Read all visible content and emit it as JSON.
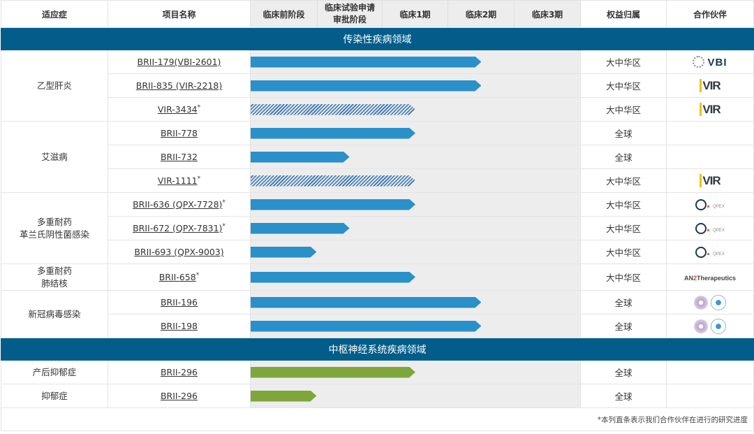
{
  "headers": {
    "indication": "适应症",
    "project": "项目名称",
    "phases": [
      "临床前阶段",
      "临床试验申请\n审批阶段",
      "临床1期",
      "临床2期",
      "临床3期"
    ],
    "rights": "权益归属",
    "partner": "合作伙伴"
  },
  "colors": {
    "band": "#025d8a",
    "own_bar": "#2a90c9",
    "cns_bar": "#7fa63a",
    "partner_bar": "hatched"
  },
  "sections": [
    {
      "title": "传染性疾病领域",
      "groups": [
        {
          "indication": "乙型肝炎",
          "rows": [
            {
              "name": "BRII-179(VBI-2601)",
              "asterisk": "",
              "progress_phases": 3.5,
              "style": "blue",
              "rights": "大中华区",
              "partner": "VBI"
            },
            {
              "name": "BRII-835 (VIR-2218)",
              "asterisk": "",
              "progress_phases": 3.5,
              "style": "blue",
              "rights": "大中华区",
              "partner": "VIR"
            },
            {
              "name": "VIR-3434",
              "asterisk": "*",
              "progress_phases": 2.5,
              "style": "hatch",
              "rights": "大中华区",
              "partner": "VIR"
            }
          ]
        },
        {
          "indication": "艾滋病",
          "rows": [
            {
              "name": "BRII-778",
              "asterisk": "",
              "progress_phases": 2.5,
              "style": "blue",
              "rights": "全球",
              "partner": ""
            },
            {
              "name": "BRII-732",
              "asterisk": "",
              "progress_phases": 1.5,
              "style": "blue",
              "rights": "全球",
              "partner": ""
            },
            {
              "name": "VIR-1111",
              "asterisk": "*",
              "progress_phases": 2.5,
              "style": "hatch",
              "rights": "大中华区",
              "partner": "VIR"
            }
          ]
        },
        {
          "indication": "多重耐药\n革兰氏阴性菌感染",
          "rows": [
            {
              "name": "BRII-636 (QPX-7728)",
              "asterisk": "*",
              "progress_phases": 2.5,
              "style": "blue",
              "rights": "大中华区",
              "partner": "QPEX"
            },
            {
              "name": "BRII-672 (QPX-7831)",
              "asterisk": "*",
              "progress_phases": 1.5,
              "style": "blue",
              "rights": "大中华区",
              "partner": "QPEX"
            },
            {
              "name": "BRII-693 (QPX-9003)",
              "asterisk": "",
              "progress_phases": 1.0,
              "style": "blue",
              "rights": "大中华区",
              "partner": "QPEX"
            }
          ]
        },
        {
          "indication": "多重耐药\n肺结核",
          "tall": true,
          "rows": [
            {
              "name": "BRII-658",
              "asterisk": "*",
              "progress_phases": 2.5,
              "style": "blue",
              "rights": "大中华区",
              "partner": "AN2Therapeutics"
            }
          ]
        },
        {
          "indication": "新冠病毒感染",
          "rows": [
            {
              "name": "BRII-196",
              "asterisk": "",
              "progress_phases": 3.5,
              "style": "blue",
              "rights": "全球",
              "partner": "seals"
            },
            {
              "name": "BRII-198",
              "asterisk": "",
              "progress_phases": 3.5,
              "style": "blue",
              "rights": "全球",
              "partner": "seals"
            }
          ]
        }
      ]
    },
    {
      "title": "中枢神经系统疾病领域",
      "groups": [
        {
          "indication": "产后抑郁症",
          "rows": [
            {
              "name": "BRII-296",
              "asterisk": "",
              "progress_phases": 2.5,
              "style": "green",
              "rights": "全球",
              "partner": ""
            }
          ]
        },
        {
          "indication": "抑郁症",
          "rows": [
            {
              "name": "BRII-296",
              "asterisk": "",
              "progress_phases": 1.0,
              "style": "green",
              "rights": "全球",
              "partner": ""
            }
          ]
        }
      ]
    }
  ],
  "footnote": "*本列直条表示我们合作伙伴在进行的研究进度"
}
